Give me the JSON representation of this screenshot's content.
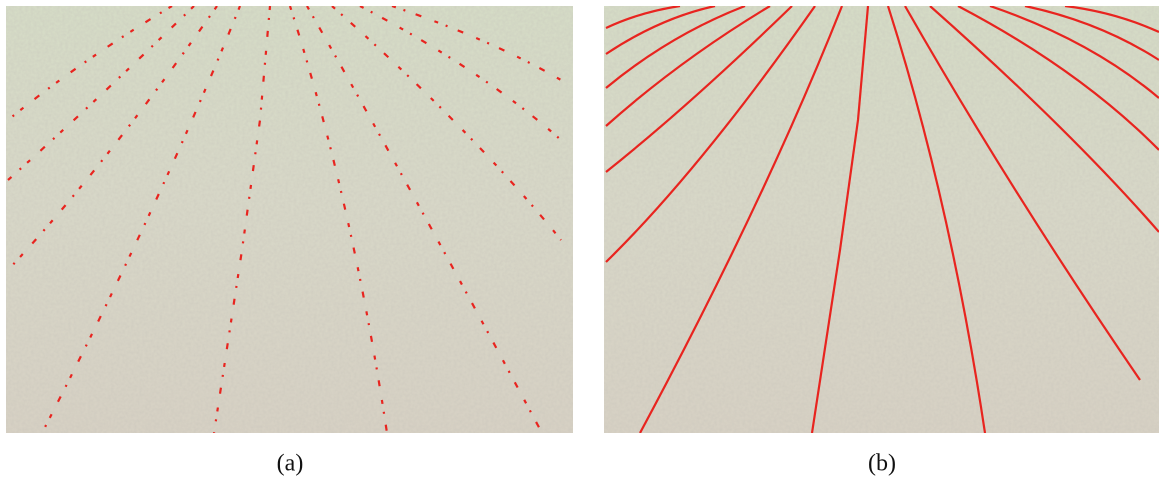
{
  "figure": {
    "panels": [
      {
        "caption": "(a)"
      },
      {
        "caption": "(b)"
      }
    ]
  }
}
